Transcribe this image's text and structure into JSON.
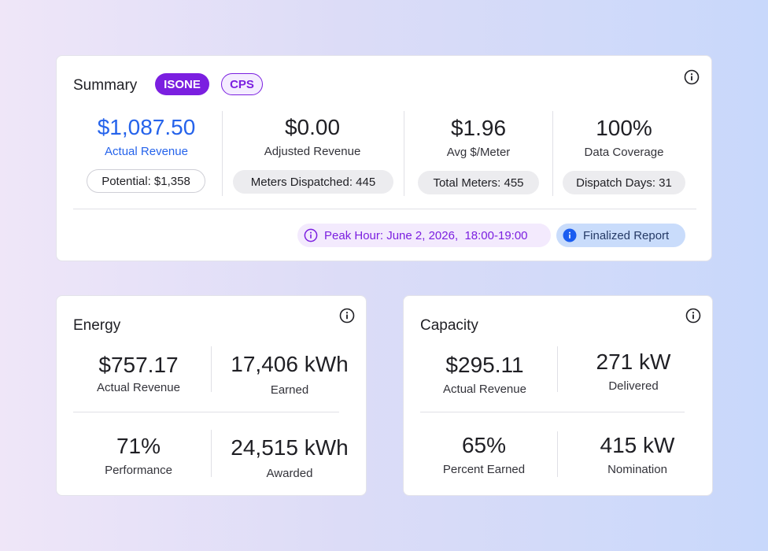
{
  "summary": {
    "title": "Summary",
    "tags": [
      "ISONE",
      "CPS"
    ],
    "metrics": [
      {
        "value": "$1,087.50",
        "label": "Actual Revenue",
        "chip": "Potential: $1,358"
      },
      {
        "value": "$0.00",
        "label": "Adjusted Revenue",
        "chip": "Meters Dispatched: 445"
      },
      {
        "value": "$1.96",
        "label": "Avg $/Meter",
        "chip": "Total Meters: 455"
      },
      {
        "value": "100%",
        "label": "Data Coverage",
        "chip": "Dispatch Days: 31"
      }
    ],
    "peak_hour": "Peak Hour: June 2, 2026,  18:00-19:00",
    "report_status": "Finalized Report"
  },
  "energy": {
    "title": "Energy",
    "metrics": [
      {
        "value": "$757.17",
        "label": "Actual Revenue"
      },
      {
        "value": "17,406 kWh",
        "label": "Earned"
      },
      {
        "value": "71%",
        "label": "Performance"
      },
      {
        "value": "24,515 kWh",
        "label": "Awarded"
      }
    ]
  },
  "capacity": {
    "title": "Capacity",
    "metrics": [
      {
        "value": "$295.11",
        "label": "Actual Revenue"
      },
      {
        "value": "271 kW",
        "label": "Delivered"
      },
      {
        "value": "65%",
        "label": "Percent Earned"
      },
      {
        "value": "415 kW",
        "label": "Nomination"
      }
    ]
  },
  "icons": {
    "info": "info-circle-icon"
  },
  "colors": {
    "accent_purple": "#7b1fe0",
    "accent_blue": "#2563eb",
    "report_badge_bg": "#c9dcfb"
  }
}
